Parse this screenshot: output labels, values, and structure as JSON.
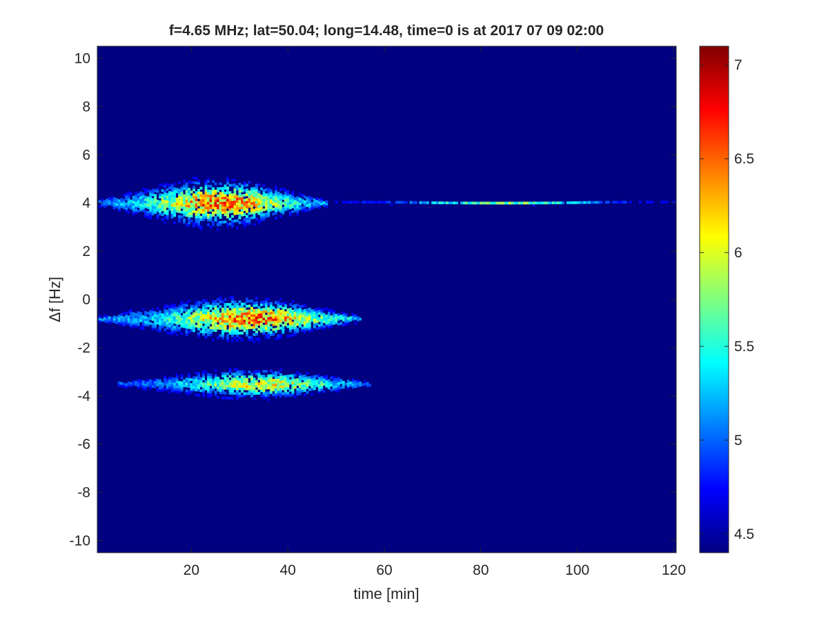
{
  "chart_data": {
    "type": "heatmap",
    "title": "f=4.65 MHz;  lat=50.04; long=14.48, time=0 is at 2017 07 09 02:00",
    "xlabel": "time [min]",
    "ylabel": "Δf [Hz]",
    "xlim": [
      0.5,
      120.5
    ],
    "ylim": [
      -10.5,
      10.5
    ],
    "xticks": [
      20,
      40,
      60,
      80,
      100,
      120
    ],
    "yticks": [
      10,
      8,
      6,
      4,
      2,
      0,
      -2,
      -4,
      -6,
      -8,
      -10
    ],
    "colorbar": {
      "colormap": "jet",
      "clim": [
        4.4,
        7.1
      ],
      "ticks": [
        7,
        6.5,
        6,
        5.5,
        5,
        4.5
      ]
    },
    "background_value": 4.4,
    "features": [
      {
        "t_start": 1,
        "t_end": 48,
        "df_center": 4.0,
        "df_spread_max": 1.6,
        "t_peak": 26,
        "peak_value": 7.0
      },
      {
        "t_start": 48,
        "t_end": 120,
        "df_center": 4.0,
        "df_spread_max": 0.1,
        "t_peak": 85,
        "peak_value": 6.0
      },
      {
        "t_start": 1,
        "t_end": 55,
        "df_center": -0.8,
        "df_spread_max": 1.4,
        "t_peak": 33,
        "peak_value": 7.0
      },
      {
        "t_start": 5,
        "t_end": 57,
        "df_center": -3.5,
        "df_spread_max": 1.0,
        "t_peak": 35,
        "peak_value": 6.5
      }
    ]
  }
}
